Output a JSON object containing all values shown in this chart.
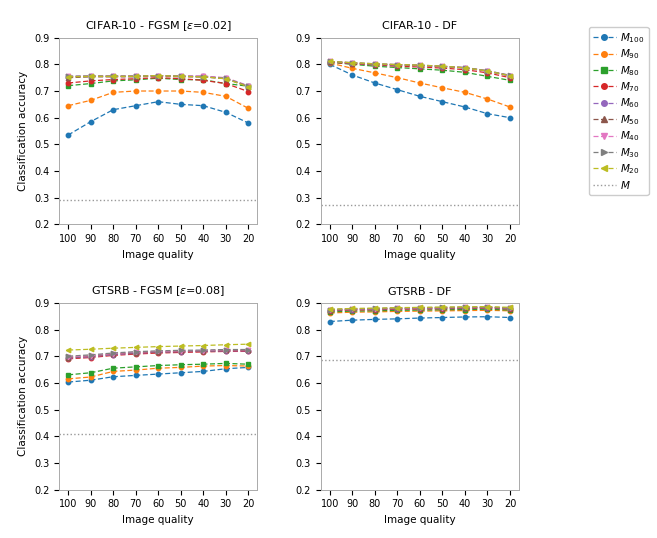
{
  "x_ticks": [
    100,
    90,
    80,
    70,
    60,
    50,
    40,
    30,
    20
  ],
  "titles": [
    "CIFAR-10 - FGSM [$\\varepsilon$=0.02]",
    "CIFAR-10 - DF",
    "GTSRB - FGSM [$\\varepsilon$=0.08]",
    "GTSRB - DF"
  ],
  "xlabel": "Image quality",
  "ylabel": "Classification accuracy",
  "ylim": [
    0.2,
    0.9
  ],
  "yticks": [
    0.2,
    0.3,
    0.4,
    0.5,
    0.6,
    0.7,
    0.8,
    0.9
  ],
  "series_labels": [
    "M_{100}",
    "M_{90}",
    "M_{80}",
    "M_{70}",
    "M_{60}",
    "M_{50}",
    "M_{40}",
    "M_{30}",
    "M_{20}",
    "M"
  ],
  "series_colors": [
    "#1f77b4",
    "#ff7f0e",
    "#2ca02c",
    "#d62728",
    "#9467bd",
    "#8c564b",
    "#e377c2",
    "#7f7f7f",
    "#bcbd22",
    "#888888"
  ],
  "series_markers": [
    "o",
    "o",
    "s",
    "o",
    "o",
    "^",
    "v",
    ">",
    "<",
    ""
  ],
  "data": {
    "cifar_fgsm": [
      [
        0.535,
        0.585,
        0.63,
        0.645,
        0.66,
        0.65,
        0.645,
        0.62,
        0.58
      ],
      [
        0.645,
        0.665,
        0.695,
        0.7,
        0.7,
        0.7,
        0.695,
        0.68,
        0.635
      ],
      [
        0.72,
        0.728,
        0.738,
        0.742,
        0.748,
        0.743,
        0.742,
        0.728,
        0.718
      ],
      [
        0.73,
        0.738,
        0.743,
        0.746,
        0.75,
        0.746,
        0.74,
        0.728,
        0.698
      ],
      [
        0.753,
        0.756,
        0.756,
        0.756,
        0.758,
        0.756,
        0.756,
        0.748,
        0.718
      ],
      [
        0.75,
        0.753,
        0.753,
        0.753,
        0.756,
        0.753,
        0.753,
        0.746,
        0.716
      ],
      [
        0.755,
        0.756,
        0.756,
        0.756,
        0.758,
        0.756,
        0.756,
        0.75,
        0.72
      ],
      [
        0.756,
        0.756,
        0.756,
        0.756,
        0.758,
        0.756,
        0.753,
        0.748,
        0.718
      ],
      [
        0.753,
        0.755,
        0.755,
        0.755,
        0.758,
        0.755,
        0.753,
        0.746,
        0.716
      ],
      0.293
    ],
    "cifar_df": [
      [
        0.8,
        0.76,
        0.73,
        0.705,
        0.68,
        0.66,
        0.64,
        0.615,
        0.6
      ],
      [
        0.805,
        0.785,
        0.768,
        0.75,
        0.73,
        0.712,
        0.695,
        0.67,
        0.64
      ],
      [
        0.808,
        0.8,
        0.793,
        0.788,
        0.783,
        0.778,
        0.77,
        0.755,
        0.74
      ],
      [
        0.808,
        0.802,
        0.798,
        0.793,
        0.79,
        0.786,
        0.78,
        0.768,
        0.75
      ],
      [
        0.81,
        0.804,
        0.8,
        0.797,
        0.795,
        0.791,
        0.786,
        0.774,
        0.756
      ],
      [
        0.81,
        0.805,
        0.801,
        0.798,
        0.796,
        0.792,
        0.787,
        0.775,
        0.757
      ],
      [
        0.811,
        0.806,
        0.802,
        0.799,
        0.797,
        0.793,
        0.788,
        0.776,
        0.758
      ],
      [
        0.811,
        0.806,
        0.802,
        0.799,
        0.797,
        0.793,
        0.788,
        0.776,
        0.759
      ],
      [
        0.811,
        0.806,
        0.802,
        0.799,
        0.797,
        0.793,
        0.787,
        0.775,
        0.757
      ],
      0.272
    ],
    "gtsrb_fgsm": [
      [
        0.603,
        0.61,
        0.623,
        0.628,
        0.633,
        0.638,
        0.643,
        0.653,
        0.658
      ],
      [
        0.615,
        0.622,
        0.643,
        0.648,
        0.655,
        0.658,
        0.663,
        0.665,
        0.663
      ],
      [
        0.63,
        0.638,
        0.655,
        0.66,
        0.665,
        0.668,
        0.67,
        0.673,
        0.67
      ],
      [
        0.69,
        0.695,
        0.703,
        0.708,
        0.712,
        0.714,
        0.716,
        0.718,
        0.718
      ],
      [
        0.693,
        0.698,
        0.706,
        0.711,
        0.715,
        0.717,
        0.718,
        0.72,
        0.72
      ],
      [
        0.695,
        0.7,
        0.708,
        0.713,
        0.716,
        0.718,
        0.719,
        0.722,
        0.722
      ],
      [
        0.697,
        0.702,
        0.71,
        0.715,
        0.718,
        0.72,
        0.721,
        0.724,
        0.724
      ],
      [
        0.7,
        0.705,
        0.712,
        0.717,
        0.72,
        0.722,
        0.723,
        0.725,
        0.725
      ],
      [
        0.723,
        0.726,
        0.73,
        0.733,
        0.736,
        0.738,
        0.74,
        0.743,
        0.745
      ],
      0.408
    ],
    "gtsrb_df": [
      [
        0.83,
        0.835,
        0.838,
        0.84,
        0.843,
        0.845,
        0.847,
        0.848,
        0.845
      ],
      [
        0.862,
        0.865,
        0.866,
        0.868,
        0.869,
        0.87,
        0.871,
        0.872,
        0.87
      ],
      [
        0.866,
        0.869,
        0.87,
        0.872,
        0.873,
        0.874,
        0.875,
        0.876,
        0.873
      ],
      [
        0.87,
        0.873,
        0.874,
        0.876,
        0.877,
        0.878,
        0.879,
        0.88,
        0.877
      ],
      [
        0.872,
        0.875,
        0.876,
        0.878,
        0.879,
        0.88,
        0.881,
        0.882,
        0.879
      ],
      [
        0.873,
        0.876,
        0.877,
        0.879,
        0.88,
        0.881,
        0.882,
        0.883,
        0.88
      ],
      [
        0.874,
        0.877,
        0.878,
        0.88,
        0.881,
        0.882,
        0.883,
        0.884,
        0.881
      ],
      [
        0.875,
        0.878,
        0.879,
        0.881,
        0.882,
        0.883,
        0.884,
        0.884,
        0.881
      ],
      [
        0.876,
        0.879,
        0.88,
        0.882,
        0.883,
        0.884,
        0.885,
        0.886,
        0.883
      ],
      0.686
    ]
  }
}
